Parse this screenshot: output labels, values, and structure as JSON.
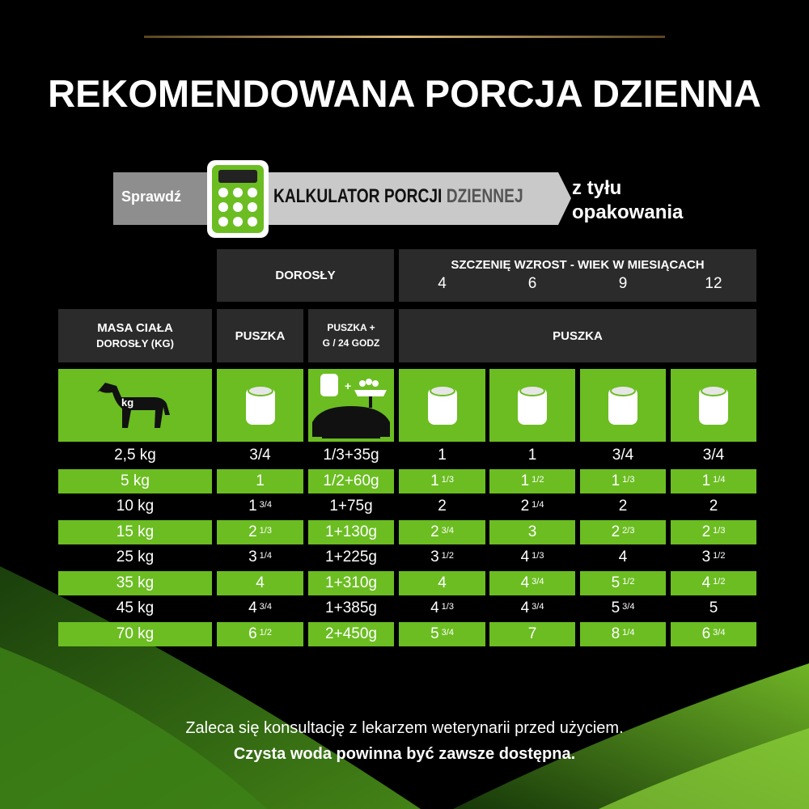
{
  "title": "REKOMENDOWANA PORCJA DZIENNA",
  "banner": {
    "check": "Sprawdź",
    "calculator": "KALKULATOR PORCJI",
    "daily": "DZIENNEJ",
    "back": "z tyłu",
    "pack": "opakowania"
  },
  "table": {
    "adult_header": "DOROSŁY",
    "puppy_header": "SZCZENIĘ WZROST - WIEK W MIESIĄCACH",
    "ages": [
      "4",
      "6",
      "9",
      "12"
    ],
    "weight_header": [
      "MASA CIAŁA",
      "DOROSŁY (KG)"
    ],
    "can": "PUSZKA",
    "can_plus": [
      "PUSZKA +",
      "G / 24 GODZ"
    ],
    "puppy_can": "PUSZKA",
    "icon_kg": "kg",
    "rows": [
      [
        "2,5 kg",
        "3/4",
        "1/3+35g",
        "1",
        "1",
        "3/4",
        "3/4"
      ],
      [
        "5 kg",
        "1",
        "1/2+60g",
        {
          "w": "1",
          "f": "1/3"
        },
        {
          "w": "1",
          "f": "1/2"
        },
        {
          "w": "1",
          "f": "1/3"
        },
        {
          "w": "1",
          "f": "1/4"
        }
      ],
      [
        "10 kg",
        {
          "w": "1",
          "f": "3/4"
        },
        "1+75g",
        "2",
        {
          "w": "2",
          "f": "1/4"
        },
        "2",
        "2"
      ],
      [
        "15 kg",
        {
          "w": "2",
          "f": "1/3"
        },
        "1+130g",
        {
          "w": "2",
          "f": "3/4"
        },
        "3",
        {
          "w": "2",
          "f": "2/3"
        },
        {
          "w": "2",
          "f": "1/3"
        }
      ],
      [
        "25 kg",
        {
          "w": "3",
          "f": "1/4"
        },
        "1+225g",
        {
          "w": "3",
          "f": "1/2"
        },
        {
          "w": "4",
          "f": "1/3"
        },
        "4",
        {
          "w": "3",
          "f": "1/2"
        }
      ],
      [
        "35 kg",
        "4",
        "1+310g",
        "4",
        {
          "w": "4",
          "f": "3/4"
        },
        {
          "w": "5",
          "f": "1/2"
        },
        {
          "w": "4",
          "f": "1/2"
        }
      ],
      [
        "45 kg",
        {
          "w": "4",
          "f": "3/4"
        },
        "1+385g",
        {
          "w": "4",
          "f": "1/3"
        },
        {
          "w": "4",
          "f": "3/4"
        },
        {
          "w": "5",
          "f": "3/4"
        },
        "5"
      ],
      [
        "70 kg",
        {
          "w": "6",
          "f": "1/2"
        },
        "2+450g",
        {
          "w": "5",
          "f": "3/4"
        },
        "7",
        {
          "w": "8",
          "f": "1/4"
        },
        {
          "w": "6",
          "f": "3/4"
        }
      ]
    ]
  },
  "footer": {
    "note": "Zaleca się konsultację z lekarzem weterynarii przed użyciem.",
    "note_bold": "Czysta woda powinna być zawsze dostępna."
  }
}
